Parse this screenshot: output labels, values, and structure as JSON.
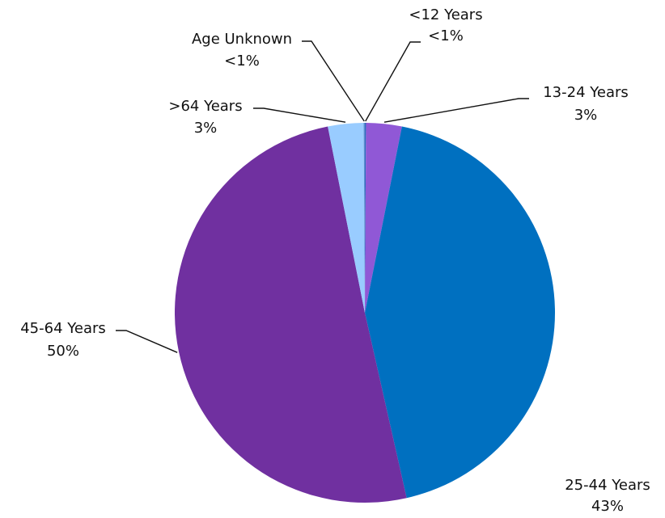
{
  "chart_data": {
    "type": "pie",
    "title": "",
    "slices": [
      {
        "label": "<12 Years",
        "value_text": "<1%",
        "value": 0.1,
        "color": "#2f6fc0"
      },
      {
        "label": "13-24 Years",
        "value_text": "3%",
        "value": 3,
        "color": "#9058d6"
      },
      {
        "label": "25-44 Years",
        "value_text": "43%",
        "value": 43,
        "color": "#0070c0"
      },
      {
        "label": "45-64 Years",
        "value_text": "50%",
        "value": 50,
        "color": "#7030a0"
      },
      {
        "label": ">64 Years",
        "value_text": "3%",
        "value": 3,
        "color": "#99ccff"
      },
      {
        "label": "Age Unknown",
        "value_text": "<1%",
        "value": 0.1,
        "color": "#5f8fd0"
      }
    ]
  }
}
